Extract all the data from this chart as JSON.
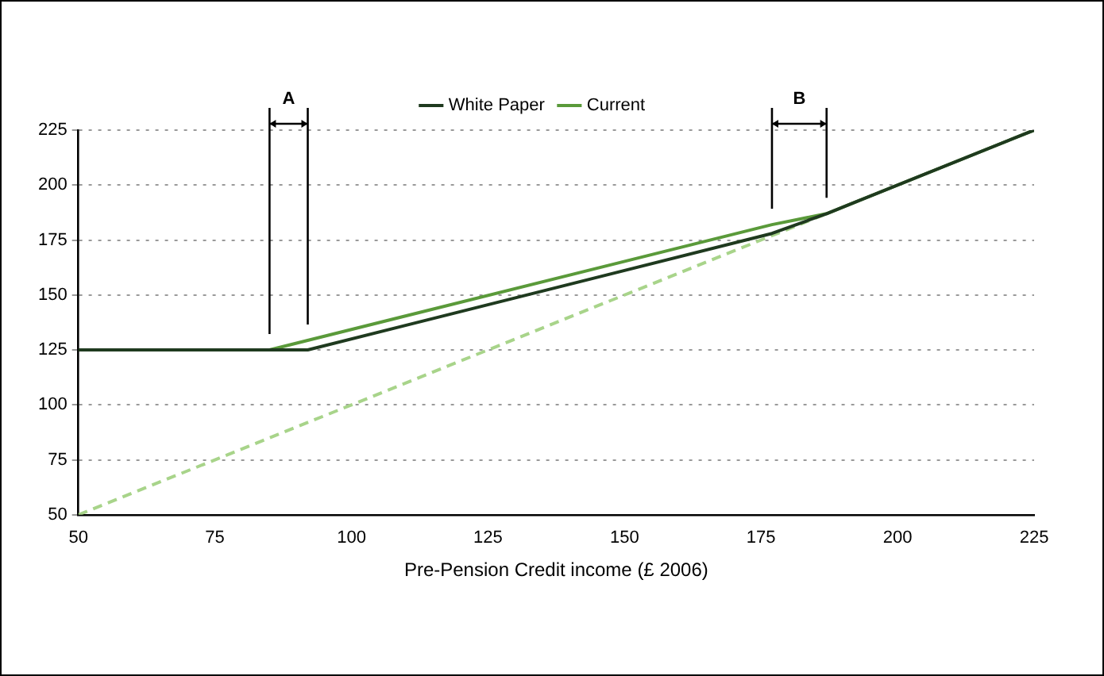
{
  "chart_data": {
    "type": "line",
    "xlabel": "Pre-Pension Credit income (£ 2006)",
    "xlim": [
      50,
      225
    ],
    "xticks": [
      50,
      75,
      100,
      125,
      150,
      175,
      200,
      225
    ],
    "ylim": [
      50,
      225
    ],
    "yticks": [
      50,
      75,
      100,
      125,
      150,
      175,
      200,
      225
    ],
    "grid": "y",
    "legend": "top",
    "marker": "none",
    "series": [
      {
        "name": "White Paper",
        "color": "#1f3a1f",
        "x": [
          50,
          92,
          177,
          187,
          225
        ],
        "values": [
          125,
          125,
          178,
          187,
          225
        ]
      },
      {
        "name": "Current",
        "color": "#5a9a3a",
        "x": [
          50,
          85,
          177,
          187,
          225
        ],
        "values": [
          125,
          125,
          182,
          187,
          225
        ]
      },
      {
        "color": "#a8d48a",
        "line_style": "dashed",
        "x": [
          50,
          187
        ],
        "values": [
          50,
          187
        ]
      }
    ],
    "ref_lines": [
      {
        "axis": "x",
        "value": 85
      },
      {
        "axis": "x",
        "value": 92
      },
      {
        "axis": "x",
        "value": 177
      },
      {
        "axis": "x",
        "value": 187
      }
    ],
    "annotations": [
      "A",
      "B"
    ]
  }
}
